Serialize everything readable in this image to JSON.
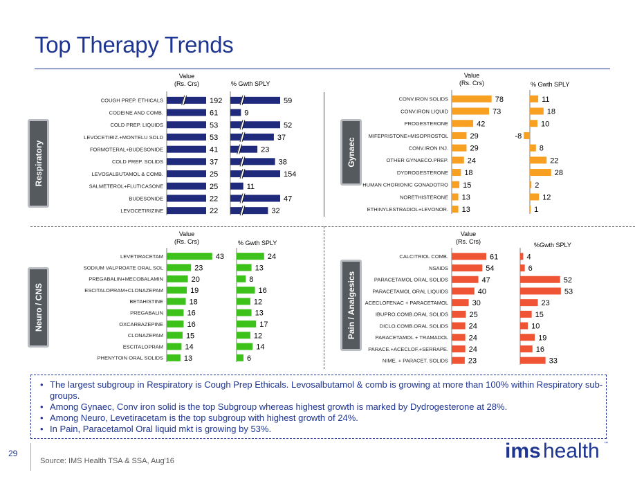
{
  "slide": {
    "title": "Top Therapy Trends",
    "page_number": "29",
    "source": "Source: IMS Health TSA & SSA, Aug'16",
    "logo": {
      "text_bold": "ims",
      "text_light": "health",
      "color": "#1f3592"
    },
    "notes": [
      "The largest subgroup in Respiratory is Cough Prep Ethicals. Levosalbutamol & comb is growing at more than 100% within Respiratory sub-groups.",
      "Among Gynaec, Conv iron solid is the top Subgroup whereas highest growth is marked by Dydrogesterone at 28%.",
      "Among  Neuro, Levetiracetam is the top subgroup with highest growth of 24%.",
      "In Pain, Paracetamol Oral liquid mkt is growing by 53%."
    ]
  },
  "chart_data": [
    {
      "type": "bar",
      "panel": "Respiratory",
      "color": "#1f2a7c",
      "value_header": [
        "Value",
        "(Rs. Crs)"
      ],
      "growth_header": "% Gwth SPLY",
      "categories": [
        "COUGH PREP. ETHICALS",
        "CODEINE AND COMB.",
        "COLD PREP. LIQUIDS",
        "LEVOCETIRIZ.+MONTELU SOLD",
        "FORMOTERAL+BUDESONIDE",
        "COLD PREP. SOLIDS",
        "LEVOSALBUTAMOL & COMB.",
        "SALMETEROL+FLUTICASONE",
        "BUDESONIDE",
        "LEVOCETIRIZINE"
      ],
      "series": [
        {
          "name": "Value (Rs. Crs)",
          "values": [
            192,
            61,
            53,
            53,
            41,
            37,
            25,
            25,
            22,
            22
          ]
        },
        {
          "name": "% Gwth SPLY",
          "values": [
            59,
            9,
            52,
            37,
            23,
            38,
            154,
            11,
            47,
            32
          ]
        }
      ],
      "axis_breaks": {
        "value_rows": [
          0
        ],
        "growth_rows": [
          0,
          2,
          3,
          4,
          5,
          6,
          8,
          9
        ]
      }
    },
    {
      "type": "bar",
      "panel": "Gynaec",
      "color": "#f7a021",
      "value_header": [
        "Value",
        "(Rs. Crs)"
      ],
      "growth_header": "% Gwth SPLY",
      "categories": [
        "CONV.IRON SOLIDS",
        "CONV.IRON LIQUID",
        "PROGESTERONE",
        "MIFEPRISTONE+MISOPROSTOL",
        "CONV.IRON INJ.",
        "OTHER GYNAECO.PREP.",
        "DYDROGESTERONE",
        "HUMAN CHORIONIC GONADOTRO",
        "NORETHISTERONE",
        "ETHINYLESTRADIOL+LEVONOR."
      ],
      "series": [
        {
          "name": "Value (Rs. Crs)",
          "values": [
            78,
            73,
            42,
            29,
            29,
            24,
            18,
            15,
            13,
            13
          ]
        },
        {
          "name": "% Gwth SPLY",
          "values": [
            11,
            18,
            10,
            -8,
            8,
            22,
            28,
            2,
            12,
            1
          ]
        }
      ]
    },
    {
      "type": "bar",
      "panel": "Neuro / CNS",
      "color": "#3cc21a",
      "value_header": [
        "Value",
        "(Rs. Crs)"
      ],
      "growth_header": "% Gwth SPLY",
      "categories": [
        "LEVETIRACETAM",
        "SODIUM VALPROATE ORAL SOL",
        "PREGABALIN+MECOBALAMIN",
        "ESCITALOPRAM+CLONAZEPAM",
        "BETAHISTINE",
        "PREGABALIN",
        "OXCARBAZEPINE",
        "CLONAZEPAM",
        "ESCITALOPRAM",
        "PHENYTOIN ORAL SOLIDS"
      ],
      "series": [
        {
          "name": "Value (Rs. Crs)",
          "values": [
            43,
            23,
            20,
            19,
            18,
            16,
            16,
            15,
            14,
            13
          ]
        },
        {
          "name": "% Gwth SPLY",
          "values": [
            24,
            13,
            8,
            16,
            12,
            13,
            17,
            12,
            14,
            6
          ]
        }
      ]
    },
    {
      "type": "bar",
      "panel": "Pain / Analgesics",
      "color": "#ef5434",
      "value_header": [
        "Value",
        "(Rs. Crs)"
      ],
      "growth_header": "%Gwth SPLY",
      "categories": [
        "CALCITRIOL COMB.",
        "NSAIDS",
        "PARACETAMOL ORAL SOLIDS",
        "PARACETAMOL ORAL LIQUIDS",
        "ACECLOFENAC + PARACETAMOL",
        "IBUPRO.COMB.ORAL SOLIDS",
        "DICLO.COMB.ORAL SOLIDS",
        "PARACETAMOL + TRAMADOL",
        "PARACE.+ACECLOF.+SERRAPE.",
        "NIME. + PARACET. SOLIDS"
      ],
      "series": [
        {
          "name": "Value (Rs. Crs)",
          "values": [
            61,
            54,
            47,
            40,
            30,
            25,
            24,
            24,
            24,
            23
          ]
        },
        {
          "name": "% Gwth SPLY",
          "values": [
            4,
            6,
            52,
            53,
            23,
            15,
            10,
            19,
            16,
            33
          ]
        }
      ]
    }
  ]
}
